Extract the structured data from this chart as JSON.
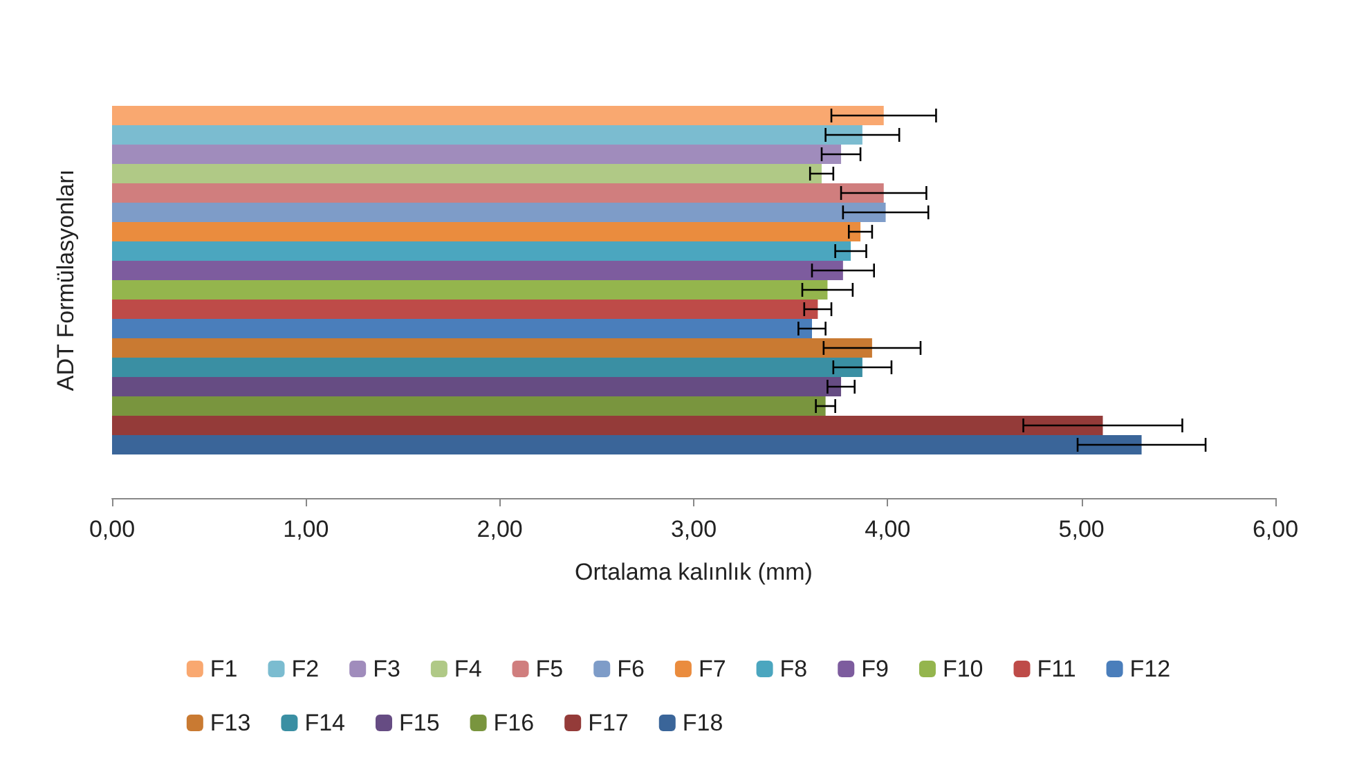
{
  "chart_data": {
    "type": "bar",
    "orientation": "horizontal",
    "xlabel": "Ortalama kalınlık (mm)",
    "ylabel": "ADT Formülasyonları",
    "categories": [
      null
    ],
    "xlim": [
      0,
      6
    ],
    "xticks": [
      {
        "value": 0,
        "label": "0,00"
      },
      {
        "value": 1,
        "label": "1,00"
      },
      {
        "value": 2,
        "label": "2,00"
      },
      {
        "value": 3,
        "label": "3,00"
      },
      {
        "value": 4,
        "label": "4,00"
      },
      {
        "value": 5,
        "label": "5,00"
      },
      {
        "value": 6,
        "label": "6,00"
      }
    ],
    "grid": false,
    "legend": "bottom",
    "series": [
      {
        "name": "F1",
        "color": "#f9a870",
        "values": [
          3.98
        ],
        "errors": [
          0.27
        ]
      },
      {
        "name": "F2",
        "color": "#7bbcd0",
        "values": [
          3.87
        ],
        "errors": [
          0.19
        ]
      },
      {
        "name": "F3",
        "color": "#a08cbc",
        "values": [
          3.76
        ],
        "errors": [
          0.1
        ]
      },
      {
        "name": "F4",
        "color": "#b0c986",
        "values": [
          3.66
        ],
        "errors": [
          0.06
        ]
      },
      {
        "name": "F5",
        "color": "#d07e7e",
        "values": [
          3.98
        ],
        "errors": [
          0.22
        ]
      },
      {
        "name": "F6",
        "color": "#7e9cc8",
        "values": [
          3.99
        ],
        "errors": [
          0.22
        ]
      },
      {
        "name": "F7",
        "color": "#ea8c3e",
        "values": [
          3.86
        ],
        "errors": [
          0.06
        ]
      },
      {
        "name": "F8",
        "color": "#4ba6bf",
        "values": [
          3.81
        ],
        "errors": [
          0.08
        ]
      },
      {
        "name": "F9",
        "color": "#7d5c9e",
        "values": [
          3.77
        ],
        "errors": [
          0.16
        ]
      },
      {
        "name": "F10",
        "color": "#94b54d",
        "values": [
          3.69
        ],
        "errors": [
          0.13
        ]
      },
      {
        "name": "F11",
        "color": "#be4b48",
        "values": [
          3.64
        ],
        "errors": [
          0.07
        ]
      },
      {
        "name": "F12",
        "color": "#4a7ebb",
        "values": [
          3.61
        ],
        "errors": [
          0.07
        ]
      },
      {
        "name": "F13",
        "color": "#c97a32",
        "values": [
          3.92
        ],
        "errors": [
          0.25
        ]
      },
      {
        "name": "F14",
        "color": "#3a8fa3",
        "values": [
          3.87
        ],
        "errors": [
          0.15
        ]
      },
      {
        "name": "F15",
        "color": "#664c83",
        "values": [
          3.76
        ],
        "errors": [
          0.07
        ]
      },
      {
        "name": "F16",
        "color": "#79953e",
        "values": [
          3.68
        ],
        "errors": [
          0.05
        ]
      },
      {
        "name": "F17",
        "color": "#943b39",
        "values": [
          5.11
        ],
        "errors": [
          0.41
        ]
      },
      {
        "name": "F18",
        "color": "#3a6599",
        "values": [
          5.31
        ],
        "errors": [
          0.33
        ]
      }
    ]
  }
}
